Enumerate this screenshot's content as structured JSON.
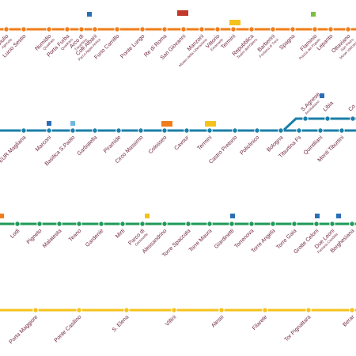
{
  "lines": [
    {
      "stations": [
        [
          "Giulio",
          "Agricola"
        ],
        [
          "Lucio Sestio"
        ],
        [
          "Numidio",
          "Quadrato"
        ],
        [
          "Porta Furba",
          "Quadraro"
        ],
        [
          "Arco di",
          "Travertino"
        ],
        [
          "Colli Albani",
          "Parco Appia Antica"
        ],
        [
          "Furio Camillo"
        ],
        [
          "Ponte Lungo"
        ],
        [
          "Re di Roma"
        ],
        [
          "San Giovanni"
        ],
        [
          "Manzoni",
          "Museo della Liberazione"
        ],
        [
          "Vittorio",
          "Emanuele"
        ],
        [
          "Termini"
        ],
        [
          "Repubblica",
          "Teatro dell'Opera"
        ],
        [
          "Barberini",
          "Fontana di Trevi"
        ],
        [
          "Spagna"
        ],
        [
          "Flaminio",
          "Piazza del Popolo"
        ],
        [
          "Lepanto"
        ],
        [
          "Ottaviano",
          "San Pietro",
          "Musei Vaticani"
        ]
      ]
    },
    {
      "stations": [
        [
          "EUR Magliana"
        ],
        [
          "Marconi"
        ],
        [
          "Basilica S.Paolo"
        ],
        [
          "Garbatella"
        ],
        [
          "Piramide"
        ],
        [
          "Circo Massimo"
        ],
        [
          "Colosseo"
        ],
        [
          "Cavour"
        ],
        [
          "Termini"
        ],
        [
          "Castro Pretorio"
        ],
        [
          "Policlinico"
        ],
        [
          "Bologna"
        ],
        [
          "Tiburtina Fs"
        ],
        [
          "Quintiliani"
        ],
        [
          "Monti Tiburtini"
        ],
        [
          "S.Agnese",
          "Annibaliano"
        ],
        [
          "Libia"
        ],
        [
          "Co"
        ]
      ]
    },
    {
      "stations": [
        [
          "Lodi"
        ],
        [
          "Pigneto"
        ],
        [
          "Malatesta"
        ],
        [
          "Teano"
        ],
        [
          "Gardenie"
        ],
        [
          "Mirti"
        ],
        [
          "Parco di",
          "Centocelle"
        ],
        [
          "Alessandrino"
        ],
        [
          "Torre Spaccata"
        ],
        [
          "Torre Maura"
        ],
        [
          "Giardinetti"
        ],
        [
          "Torrenova"
        ],
        [
          "Torre Angela"
        ],
        [
          "Torre Gaia"
        ],
        [
          "Grotte Celoni"
        ],
        [
          "Due Leoni",
          "Fontana Candida"
        ],
        [
          "Borghesiana"
        ]
      ]
    },
    {
      "stations": [
        [
          "Porta Maggiore"
        ],
        [
          "Ponte Casilino"
        ],
        [
          "S. Elena"
        ],
        [
          "Villini"
        ],
        [
          "Alessi"
        ],
        [
          "Filarete"
        ],
        [
          "Tor Pignattara"
        ],
        [
          "Berar"
        ]
      ]
    }
  ]
}
